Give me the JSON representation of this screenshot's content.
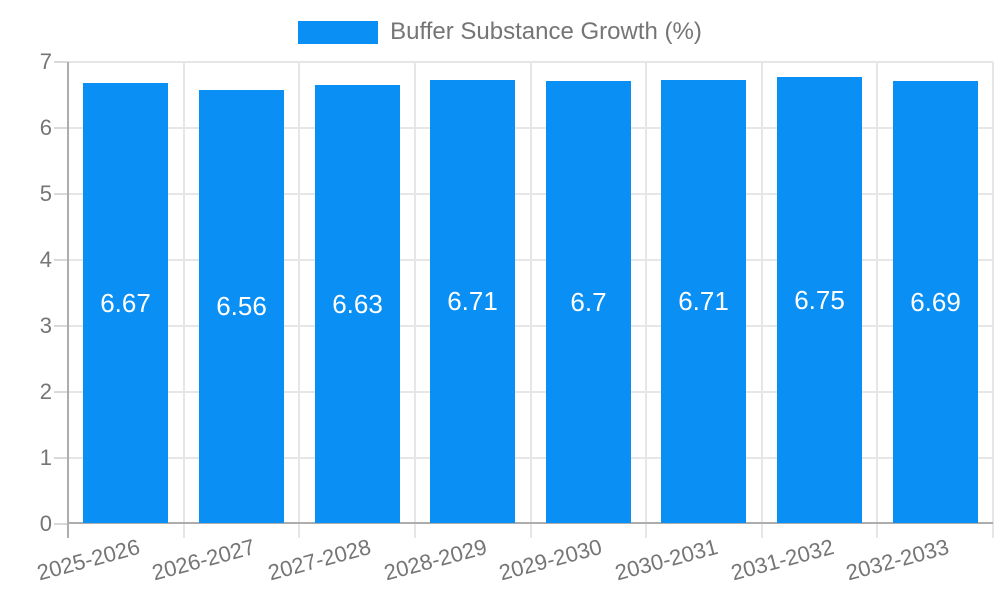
{
  "legend": {
    "label": "Buffer Substance Growth (%)"
  },
  "chart_data": {
    "type": "bar",
    "title": "Buffer Substance Growth (%)",
    "categories": [
      "2025-2026",
      "2026-2027",
      "2027-2028",
      "2028-2029",
      "2029-2030",
      "2030-2031",
      "2031-2032",
      "2032-2033"
    ],
    "values": [
      6.67,
      6.56,
      6.63,
      6.71,
      6.7,
      6.71,
      6.75,
      6.69
    ],
    "value_labels": [
      "6.67",
      "6.56",
      "6.63",
      "6.71",
      "6.7",
      "6.71",
      "6.75",
      "6.69"
    ],
    "xlabel": "",
    "ylabel": "",
    "ylim": [
      0,
      7
    ],
    "y_ticks": [
      0,
      1,
      2,
      3,
      4,
      5,
      6,
      7
    ],
    "grid": true,
    "legend_position": "top-center",
    "colors": {
      "bar": "#0A8FF5",
      "bar_value_text": "#ffffff",
      "axis_text": "#757575",
      "grid_line": "#e6e6e6",
      "axis_line": "#adadad",
      "tick": "#d9d9d9",
      "background": "#ffffff"
    }
  }
}
